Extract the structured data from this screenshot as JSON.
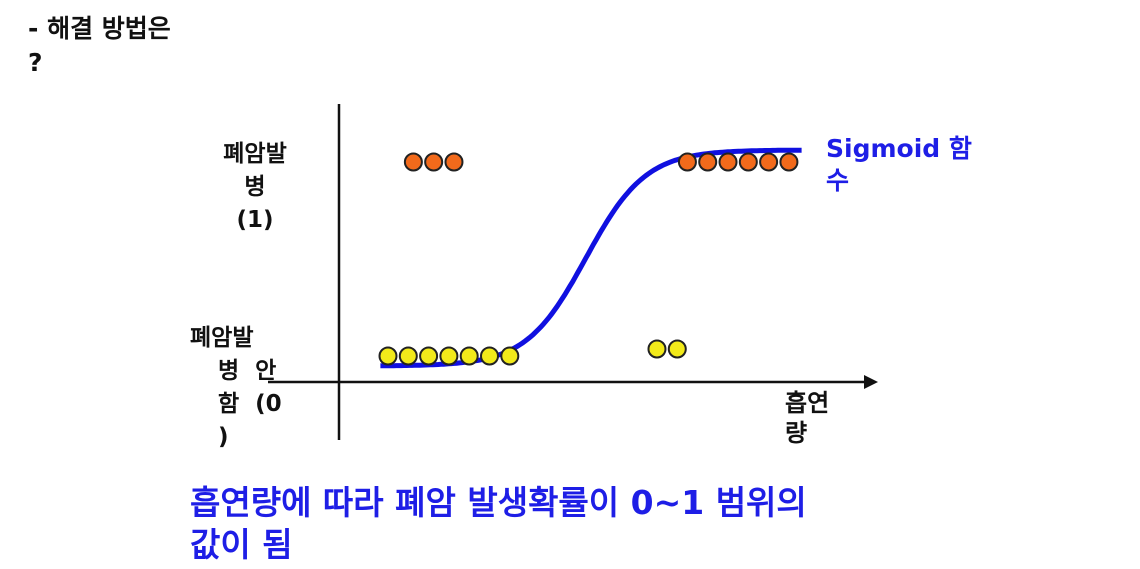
{
  "heading": {
    "line1": "- 해결 방법은",
    "line2": "?"
  },
  "chart_data": {
    "type": "scatter",
    "title": "",
    "ylabel_top": [
      "폐암발",
      "병",
      "(1)"
    ],
    "ylabel_bottom": [
      "폐암발",
      "병  안",
      "함  (0",
      ")"
    ],
    "xlabel": [
      "흡연",
      "량"
    ],
    "curve_label": [
      "Sigmoid 함",
      "수"
    ],
    "series": [
      {
        "name": "폐암발병 (1)",
        "color": "#f26a1b",
        "y": 1,
        "x": [
          1.0,
          1.8,
          2.6,
          11.8,
          12.6,
          13.4,
          14.2,
          15.0,
          15.8
        ]
      },
      {
        "name": "폐암발병 안함 (0)",
        "color": "#f2ea1a",
        "y": 0,
        "x": [
          0.0,
          0.8,
          1.6,
          2.4,
          3.2,
          4.0,
          4.8,
          10.6,
          11.4
        ]
      }
    ],
    "curve": {
      "type": "sigmoid",
      "color": "#1010e0",
      "x_range": [
        0,
        16
      ]
    },
    "caption": [
      "흡연량에 따라 폐암 발생확률이 0~1 범위의",
      "값이 됨"
    ]
  }
}
